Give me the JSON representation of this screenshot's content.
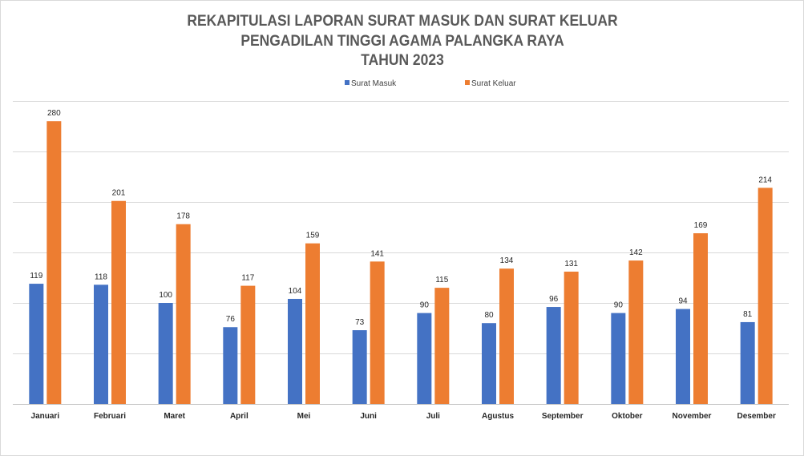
{
  "chart_data": {
    "type": "bar",
    "title_lines": [
      "REKAPITULASI LAPORAN SURAT MASUK DAN SURAT KELUAR",
      "PENGADILAN TINGGI AGAMA PALANGKA RAYA",
      "TAHUN 2023"
    ],
    "categories": [
      "Januari",
      "Februari",
      "Maret",
      "April",
      "Mei",
      "Juni",
      "Juli",
      "Agustus",
      "September",
      "Oktober",
      "November",
      "Desember"
    ],
    "series": [
      {
        "name": "Surat Masuk",
        "color": "#4472c4",
        "values": [
          119,
          118,
          100,
          76,
          104,
          73,
          90,
          80,
          96,
          90,
          94,
          81
        ]
      },
      {
        "name": "Surat Keluar",
        "color": "#ed7d31",
        "values": [
          280,
          201,
          178,
          117,
          159,
          141,
          115,
          134,
          131,
          142,
          169,
          214
        ]
      }
    ],
    "ylim": [
      0,
      300
    ],
    "ytick_step": 50,
    "grid": true,
    "legend_position": "top-center",
    "data_labels": true,
    "y_tick_labels_visible": false
  }
}
